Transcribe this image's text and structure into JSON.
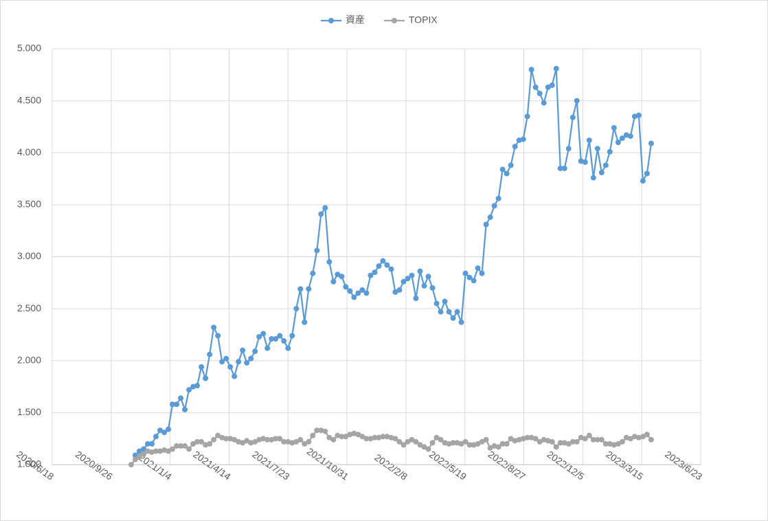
{
  "chart_data": {
    "type": "line",
    "x": [
      "2020/10/30",
      "2020/11/6",
      "2020/11/13",
      "2020/11/20",
      "2020/11/27",
      "2020/12/4",
      "2020/12/11",
      "2020/12/18",
      "2020/12/25",
      "2021/1/1",
      "2021/1/8",
      "2021/1/15",
      "2021/1/22",
      "2021/1/29",
      "2021/2/5",
      "2021/2/12",
      "2021/2/19",
      "2021/2/26",
      "2021/3/5",
      "2021/3/12",
      "2021/3/19",
      "2021/3/26",
      "2021/4/2",
      "2021/4/9",
      "2021/4/16",
      "2021/4/23",
      "2021/4/30",
      "2021/5/7",
      "2021/5/14",
      "2021/5/21",
      "2021/5/28",
      "2021/6/4",
      "2021/6/11",
      "2021/6/18",
      "2021/6/25",
      "2021/7/2",
      "2021/7/9",
      "2021/7/16",
      "2021/7/23",
      "2021/7/30",
      "2021/8/6",
      "2021/8/13",
      "2021/8/20",
      "2021/8/27",
      "2021/9/3",
      "2021/9/10",
      "2021/9/17",
      "2021/9/24",
      "2021/10/1",
      "2021/10/8",
      "2021/10/15",
      "2021/10/22",
      "2021/10/29",
      "2021/11/5",
      "2021/11/12",
      "2021/11/19",
      "2021/11/26",
      "2021/12/3",
      "2021/12/10",
      "2021/12/17",
      "2021/12/24",
      "2021/12/31",
      "2022/1/7",
      "2022/1/14",
      "2022/1/21",
      "2022/1/28",
      "2022/2/4",
      "2022/2/11",
      "2022/2/18",
      "2022/2/25",
      "2022/3/4",
      "2022/3/11",
      "2022/3/18",
      "2022/3/25",
      "2022/4/1",
      "2022/4/8",
      "2022/4/15",
      "2022/4/22",
      "2022/4/29",
      "2022/5/6",
      "2022/5/13",
      "2022/5/20",
      "2022/5/27",
      "2022/6/3",
      "2022/6/10",
      "2022/6/17",
      "2022/6/24",
      "2022/7/1",
      "2022/7/8",
      "2022/7/15",
      "2022/7/22",
      "2022/7/29",
      "2022/8/5",
      "2022/8/12",
      "2022/8/19",
      "2022/8/26",
      "2022/9/2",
      "2022/9/9",
      "2022/9/16",
      "2022/9/23",
      "2022/9/30",
      "2022/10/7",
      "2022/10/14",
      "2022/10/21",
      "2022/10/28",
      "2022/11/4",
      "2022/11/11",
      "2022/11/18",
      "2022/11/25",
      "2022/12/2",
      "2022/12/9",
      "2022/12/16",
      "2022/12/23",
      "2022/12/30",
      "2023/1/6",
      "2023/1/13",
      "2023/1/20",
      "2023/1/27",
      "2023/2/3",
      "2023/2/10",
      "2023/2/17",
      "2023/2/24",
      "2023/3/3",
      "2023/3/10",
      "2023/3/17",
      "2023/3/24",
      "2023/3/31"
    ],
    "series": [
      {
        "name": "資産",
        "color": "#5b9bd5",
        "values": [
          null,
          1.09,
          1.13,
          1.15,
          1.2,
          1.2,
          1.27,
          1.33,
          1.31,
          1.34,
          1.58,
          1.58,
          1.64,
          1.53,
          1.72,
          1.75,
          1.76,
          1.94,
          1.83,
          2.06,
          2.32,
          2.24,
          1.99,
          2.02,
          1.94,
          1.85,
          1.99,
          2.1,
          1.98,
          2.02,
          2.09,
          2.23,
          2.26,
          2.12,
          2.21,
          2.21,
          2.24,
          2.19,
          2.12,
          2.24,
          2.5,
          2.69,
          2.37,
          2.69,
          2.84,
          3.06,
          3.41,
          3.47,
          2.95,
          2.76,
          2.83,
          2.81,
          2.71,
          2.67,
          2.61,
          2.65,
          2.68,
          2.65,
          2.82,
          2.85,
          2.91,
          2.96,
          2.92,
          2.88,
          2.66,
          2.68,
          2.76,
          2.79,
          2.82,
          2.6,
          2.86,
          2.72,
          2.81,
          2.7,
          2.55,
          2.47,
          2.57,
          2.47,
          2.41,
          2.47,
          2.37,
          2.84,
          2.8,
          2.77,
          2.89,
          2.84,
          3.31,
          3.38,
          3.49,
          3.56,
          3.84,
          3.8,
          3.88,
          4.06,
          4.12,
          4.13,
          4.35,
          4.8,
          4.63,
          4.57,
          4.48,
          4.63,
          4.65,
          4.81,
          3.85,
          3.85,
          4.04,
          4.34,
          4.5,
          3.92,
          3.91,
          4.12,
          3.76,
          4.04,
          3.81,
          3.88,
          4.01,
          4.24,
          4.1,
          4.14,
          4.17,
          4.16,
          4.35,
          4.36,
          3.73,
          3.8,
          4.09
        ]
      },
      {
        "name": "TOPIX",
        "color": "#a5a5a5",
        "values": [
          1.0,
          1.05,
          1.08,
          1.1,
          1.13,
          1.12,
          1.13,
          1.13,
          1.14,
          1.13,
          1.15,
          1.18,
          1.18,
          1.18,
          1.15,
          1.2,
          1.22,
          1.22,
          1.19,
          1.2,
          1.24,
          1.28,
          1.26,
          1.25,
          1.25,
          1.24,
          1.22,
          1.21,
          1.23,
          1.21,
          1.22,
          1.24,
          1.25,
          1.24,
          1.24,
          1.25,
          1.25,
          1.22,
          1.22,
          1.21,
          1.22,
          1.24,
          1.2,
          1.22,
          1.28,
          1.33,
          1.33,
          1.32,
          1.26,
          1.24,
          1.28,
          1.27,
          1.27,
          1.29,
          1.3,
          1.29,
          1.27,
          1.25,
          1.25,
          1.26,
          1.26,
          1.27,
          1.27,
          1.26,
          1.25,
          1.22,
          1.19,
          1.22,
          1.24,
          1.22,
          1.19,
          1.17,
          1.15,
          1.21,
          1.26,
          1.24,
          1.21,
          1.2,
          1.21,
          1.21,
          1.2,
          1.22,
          1.19,
          1.19,
          1.2,
          1.22,
          1.24,
          1.16,
          1.18,
          1.17,
          1.2,
          1.2,
          1.25,
          1.23,
          1.24,
          1.25,
          1.26,
          1.26,
          1.25,
          1.22,
          1.24,
          1.23,
          1.22,
          1.17,
          1.21,
          1.21,
          1.2,
          1.22,
          1.22,
          1.26,
          1.25,
          1.28,
          1.24,
          1.24,
          1.24,
          1.2,
          1.2,
          1.19,
          1.2,
          1.22,
          1.26,
          1.25,
          1.27,
          1.26,
          1.27,
          1.29,
          1.24
        ]
      }
    ],
    "xlim": [
      "2020/6/18",
      "2023/6/23"
    ],
    "xticks": [
      "2020/6/18",
      "2020/9/26",
      "2021/1/4",
      "2021/4/14",
      "2021/7/23",
      "2021/10/31",
      "2022/2/8",
      "2022/5/19",
      "2022/8/27",
      "2022/12/5",
      "2023/3/15",
      "2023/6/23"
    ],
    "ylim": [
      1,
      5
    ],
    "yticks": [
      {
        "value": 1,
        "label": "1.000"
      },
      {
        "value": 1.5,
        "label": "1.500"
      },
      {
        "value": 2,
        "label": "2.000"
      },
      {
        "value": 2.5,
        "label": "2.500"
      },
      {
        "value": 3,
        "label": "3.000"
      },
      {
        "value": 3.5,
        "label": "3.500"
      },
      {
        "value": 4,
        "label": "4.000"
      },
      {
        "value": 4.5,
        "label": "4.500"
      },
      {
        "value": 5,
        "label": "5.000"
      }
    ],
    "grid": true,
    "legend": "top"
  }
}
